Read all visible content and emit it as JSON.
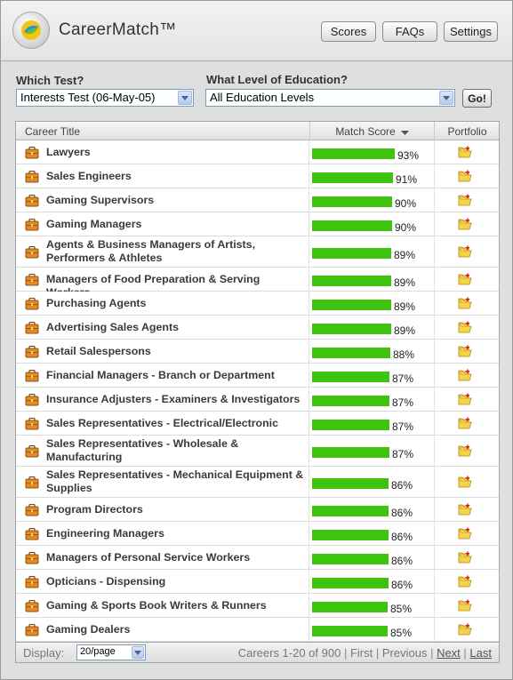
{
  "header": {
    "app_title": "CareerMatch™",
    "buttons": {
      "scores": "Scores",
      "faqs": "FAQs",
      "settings": "Settings"
    }
  },
  "filters": {
    "test_label": "Which Test?",
    "test_value": "Interests Test (06-May-05)",
    "education_label": "What Level of Education?",
    "education_value": "All Education Levels",
    "go_label": "Go!"
  },
  "table": {
    "columns": {
      "title": "Career Title",
      "score": "Match Score",
      "portfolio": "Portfolio"
    },
    "rows": [
      {
        "title": "Lawyers",
        "score": 93,
        "score_label": "93%"
      },
      {
        "title": "Sales Engineers",
        "score": 91,
        "score_label": "91%"
      },
      {
        "title": "Gaming Supervisors",
        "score": 90,
        "score_label": "90%"
      },
      {
        "title": "Gaming Managers",
        "score": 90,
        "score_label": "90%"
      },
      {
        "title": "Agents & Business Managers of Artists, Performers & Athletes",
        "score": 89,
        "score_label": "89%"
      },
      {
        "title": "Managers of Food Preparation & Serving Workers",
        "score": 89,
        "score_label": "89%"
      },
      {
        "title": "Purchasing Agents",
        "score": 89,
        "score_label": "89%"
      },
      {
        "title": "Advertising Sales Agents",
        "score": 89,
        "score_label": "89%"
      },
      {
        "title": "Retail Salespersons",
        "score": 88,
        "score_label": "88%"
      },
      {
        "title": "Financial Managers - Branch or Department",
        "score": 87,
        "score_label": "87%"
      },
      {
        "title": "Insurance Adjusters - Examiners & Investigators",
        "score": 87,
        "score_label": "87%"
      },
      {
        "title": "Sales Representatives - Electrical/Electronic",
        "score": 87,
        "score_label": "87%"
      },
      {
        "title": "Sales Representatives - Wholesale & Manufacturing",
        "score": 87,
        "score_label": "87%"
      },
      {
        "title": "Sales Representatives - Mechanical Equipment & Supplies",
        "score": 86,
        "score_label": "86%"
      },
      {
        "title": "Program Directors",
        "score": 86,
        "score_label": "86%"
      },
      {
        "title": "Engineering Managers",
        "score": 86,
        "score_label": "86%"
      },
      {
        "title": "Managers of Personal Service Workers",
        "score": 86,
        "score_label": "86%"
      },
      {
        "title": "Opticians - Dispensing",
        "score": 86,
        "score_label": "86%"
      },
      {
        "title": "Gaming & Sports Book Writers & Runners",
        "score": 85,
        "score_label": "85%"
      },
      {
        "title": "Gaming Dealers",
        "score": 85,
        "score_label": "85%"
      }
    ]
  },
  "footer": {
    "display_label": "Display:",
    "per_page_value": "20/page",
    "range_text": "Careers 1-20 of 900",
    "pager": {
      "first": "First",
      "previous": "Previous",
      "next": "Next",
      "last": "Last"
    }
  },
  "colors": {
    "bar": "#3ec30f",
    "background": "#dedfdf"
  },
  "icons": {
    "row_icon": "briefcase-icon",
    "portfolio_icon": "folder-add-icon",
    "sort_icon": "sort-descending-icon"
  }
}
